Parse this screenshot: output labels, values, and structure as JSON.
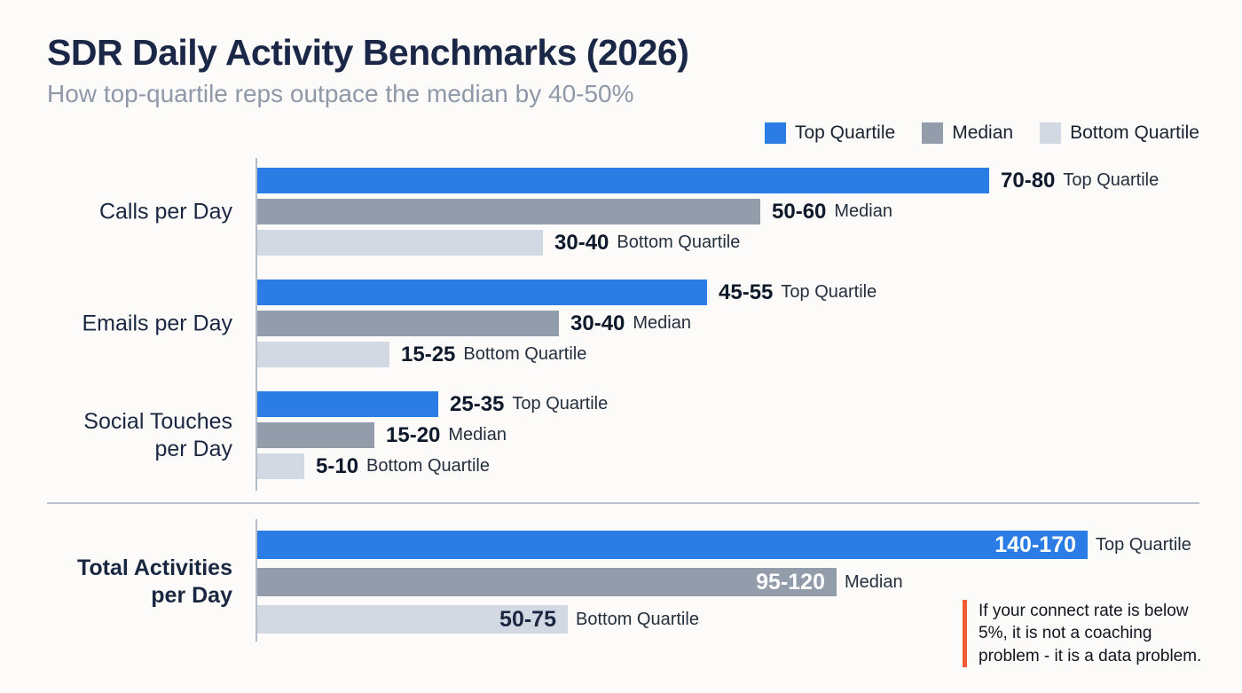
{
  "header": {
    "title": "SDR Daily Activity Benchmarks (2026)",
    "subtitle": "How top-quartile reps outpace the median by 40-50%"
  },
  "legend": [
    {
      "label": "Top Quartile",
      "color": "#2c7ce6"
    },
    {
      "label": "Median",
      "color": "#939cab"
    },
    {
      "label": "Bottom Quartile",
      "color": "#d3d9e2"
    }
  ],
  "chart_data": {
    "type": "bar",
    "orientation": "horizontal",
    "title": "SDR Daily Activity Benchmarks (2026)",
    "subtitle": "How top-quartile reps outpace the median by 40-50%",
    "series_names": [
      "Top Quartile",
      "Median",
      "Bottom Quartile"
    ],
    "series_colors": [
      "#2c7ce6",
      "#939cab",
      "#d3d9e2"
    ],
    "legend_position": "top-right",
    "grid": false,
    "groups": [
      {
        "category": "Calls per Day",
        "category_lines": [
          "Calls per Day"
        ],
        "section": "top",
        "bold": false,
        "bars": [
          {
            "series": "Top Quartile",
            "range": "70-80",
            "min": 70,
            "max": 80,
            "px": 825,
            "value_inside": false
          },
          {
            "series": "Median",
            "range": "50-60",
            "min": 50,
            "max": 60,
            "px": 567,
            "value_inside": false
          },
          {
            "series": "Bottom Quartile",
            "range": "30-40",
            "min": 30,
            "max": 40,
            "px": 322,
            "value_inside": false
          }
        ]
      },
      {
        "category": "Emails per Day",
        "category_lines": [
          "Emails per Day"
        ],
        "section": "top",
        "bold": false,
        "bars": [
          {
            "series": "Top Quartile",
            "range": "45-55",
            "min": 45,
            "max": 55,
            "px": 507,
            "value_inside": false
          },
          {
            "series": "Median",
            "range": "30-40",
            "min": 30,
            "max": 40,
            "px": 340,
            "value_inside": false
          },
          {
            "series": "Bottom Quartile",
            "range": "15-25",
            "min": 15,
            "max": 25,
            "px": 149,
            "value_inside": false
          }
        ]
      },
      {
        "category": "Social Touches per Day",
        "category_lines": [
          "Social Touches",
          "per Day"
        ],
        "section": "top",
        "bold": false,
        "bars": [
          {
            "series": "Top Quartile",
            "range": "25-35",
            "min": 25,
            "max": 35,
            "px": 204,
            "value_inside": false
          },
          {
            "series": "Median",
            "range": "15-20",
            "min": 15,
            "max": 20,
            "px": 132,
            "value_inside": false
          },
          {
            "series": "Bottom Quartile",
            "range": "5-10",
            "min": 5,
            "max": 10,
            "px": 53,
            "value_inside": false
          }
        ]
      },
      {
        "category": "Total Activities per Day",
        "category_lines": [
          "Total Activities",
          "per Day"
        ],
        "section": "bottom",
        "bold": true,
        "bars": [
          {
            "series": "Top Quartile",
            "range": "140-170",
            "min": 140,
            "max": 170,
            "px": 936,
            "value_inside": true,
            "inside_color": "#ffffff"
          },
          {
            "series": "Median",
            "range": "95-120",
            "min": 95,
            "max": 120,
            "px": 653,
            "value_inside": true,
            "inside_color": "#ffffff"
          },
          {
            "series": "Bottom Quartile",
            "range": "50-75",
            "min": 50,
            "max": 75,
            "px": 350,
            "value_inside": true,
            "inside_color": "#1b2740"
          }
        ]
      }
    ]
  },
  "callout": {
    "text": "If your connect rate is below 5%, it is not a coaching problem - it is a data problem.",
    "accent_color": "#f15b33"
  }
}
